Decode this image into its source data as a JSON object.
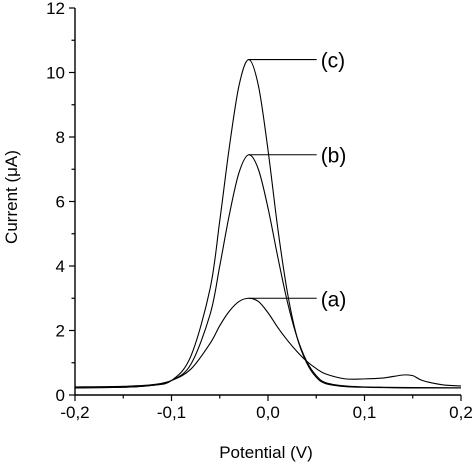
{
  "chart_data": {
    "type": "line",
    "title": "",
    "xlabel": "Potential (V)",
    "ylabel": "Current (μA)",
    "xlim": [
      -0.2,
      0.2
    ],
    "ylim": [
      0,
      12
    ],
    "x_ticks": [
      {
        "value": -0.2,
        "label": "-0,2"
      },
      {
        "value": -0.1,
        "label": "-0,1"
      },
      {
        "value": 0.0,
        "label": "0,0"
      },
      {
        "value": 0.1,
        "label": "0,1"
      },
      {
        "value": 0.2,
        "label": "0,2"
      }
    ],
    "y_ticks": [
      {
        "value": 0,
        "label": "0"
      },
      {
        "value": 2,
        "label": "2"
      },
      {
        "value": 4,
        "label": "4"
      },
      {
        "value": 6,
        "label": "6"
      },
      {
        "value": 8,
        "label": "8"
      },
      {
        "value": 10,
        "label": "10"
      },
      {
        "value": 12,
        "label": "12"
      }
    ],
    "grid": false,
    "series": [
      {
        "name": "(a)",
        "x": [
          -0.2,
          -0.15,
          -0.12,
          -0.1,
          -0.08,
          -0.06,
          -0.05,
          -0.04,
          -0.03,
          -0.02,
          -0.01,
          0.0,
          0.01,
          0.02,
          0.03,
          0.04,
          0.05,
          0.06,
          0.08,
          0.1,
          0.12,
          0.14,
          0.15,
          0.16,
          0.18,
          0.2
        ],
        "y": [
          0.25,
          0.27,
          0.32,
          0.45,
          0.8,
          1.6,
          2.15,
          2.6,
          2.9,
          3.0,
          2.9,
          2.55,
          2.1,
          1.7,
          1.35,
          1.05,
          0.82,
          0.65,
          0.5,
          0.5,
          0.53,
          0.62,
          0.6,
          0.45,
          0.32,
          0.28
        ]
      },
      {
        "name": "(b)",
        "x": [
          -0.2,
          -0.15,
          -0.12,
          -0.1,
          -0.08,
          -0.06,
          -0.05,
          -0.04,
          -0.03,
          -0.02,
          -0.01,
          0.0,
          0.01,
          0.02,
          0.03,
          0.04,
          0.05,
          0.06,
          0.08,
          0.1,
          0.12,
          0.15,
          0.2
        ],
        "y": [
          0.22,
          0.24,
          0.3,
          0.45,
          0.95,
          2.5,
          4.0,
          5.6,
          6.9,
          7.45,
          7.0,
          5.8,
          4.3,
          2.9,
          1.8,
          1.05,
          0.6,
          0.38,
          0.28,
          0.25,
          0.24,
          0.23,
          0.22
        ]
      },
      {
        "name": "(c)",
        "x": [
          -0.2,
          -0.15,
          -0.12,
          -0.1,
          -0.08,
          -0.06,
          -0.05,
          -0.04,
          -0.03,
          -0.02,
          -0.01,
          0.0,
          0.01,
          0.02,
          0.03,
          0.04,
          0.05,
          0.06,
          0.08,
          0.1,
          0.12,
          0.15,
          0.2
        ],
        "y": [
          0.22,
          0.24,
          0.3,
          0.45,
          1.2,
          3.3,
          5.4,
          7.7,
          9.6,
          10.4,
          9.6,
          7.6,
          5.2,
          3.2,
          1.8,
          1.0,
          0.55,
          0.35,
          0.26,
          0.24,
          0.23,
          0.22,
          0.22
        ]
      }
    ],
    "annotations": [
      {
        "text": "(a)",
        "series": "(a)",
        "anchor_x": -0.02,
        "anchor_y": 3.0,
        "text_y": 3.0
      },
      {
        "text": "(b)",
        "series": "(b)",
        "anchor_x": -0.02,
        "anchor_y": 7.45,
        "text_y": 7.45
      },
      {
        "text": "(c)",
        "series": "(c)",
        "anchor_x": -0.02,
        "anchor_y": 10.4,
        "text_y": 10.4
      }
    ]
  }
}
